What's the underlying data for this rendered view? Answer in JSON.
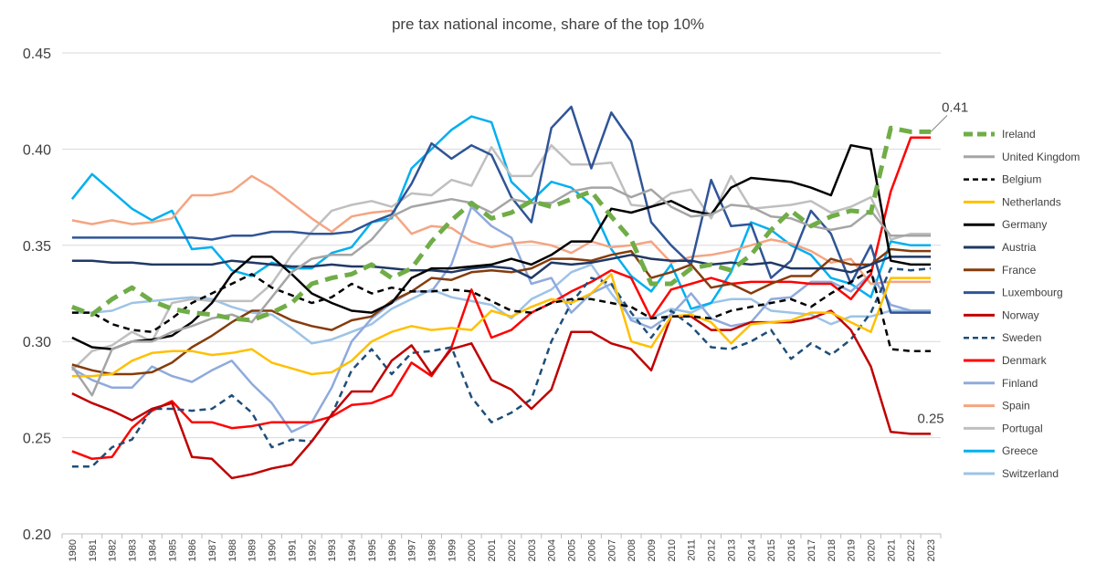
{
  "chart_data": {
    "type": "line",
    "title": "pre tax national income, share of the top 10%",
    "xlabel": "",
    "ylabel": "",
    "ylim": [
      0.2,
      0.45
    ],
    "yticks": [
      "0.20",
      "0.25",
      "0.30",
      "0.35",
      "0.40",
      "0.45"
    ],
    "ytick_values": [
      0.2,
      0.25,
      0.3,
      0.35,
      0.4,
      0.45
    ],
    "grid": true,
    "legend_position": "right",
    "x": [
      "1980",
      "1981",
      "1982",
      "1983",
      "1984",
      "1985",
      "1986",
      "1987",
      "1988",
      "1989",
      "1990",
      "1991",
      "1992",
      "1993",
      "1994",
      "1995",
      "1996",
      "1997",
      "1998",
      "1999",
      "2000",
      "2001",
      "2002",
      "2003",
      "2004",
      "2005",
      "2006",
      "2007",
      "2008",
      "2009",
      "2010",
      "2011",
      "2012",
      "2013",
      "2014",
      "2015",
      "2016",
      "2017",
      "2018",
      "2019",
      "2020",
      "2021",
      "2022",
      "2023"
    ],
    "annotations": [
      {
        "text": "0.41",
        "series": "Ireland",
        "year": "2023"
      },
      {
        "text": "0.25",
        "series": "Norway",
        "year": "2023"
      }
    ],
    "series": [
      {
        "name": "Ireland",
        "color": "#70ad47",
        "style": "dashed-thick",
        "values": [
          0.318,
          0.314,
          0.322,
          0.328,
          0.321,
          0.317,
          0.315,
          0.314,
          0.312,
          0.311,
          0.315,
          0.32,
          0.33,
          0.333,
          0.335,
          0.34,
          0.333,
          0.338,
          0.352,
          0.363,
          0.372,
          0.364,
          0.367,
          0.373,
          0.37,
          0.374,
          0.378,
          0.365,
          0.353,
          0.33,
          0.33,
          0.338,
          0.34,
          0.337,
          0.345,
          0.358,
          0.368,
          0.36,
          0.365,
          0.368,
          0.367,
          0.411,
          0.409,
          0.409
        ]
      },
      {
        "name": "United Kingdom",
        "color": "#a5a5a5",
        "style": "solid",
        "values": [
          0.287,
          0.272,
          0.296,
          0.3,
          0.3,
          0.305,
          0.308,
          0.312,
          0.314,
          0.31,
          0.323,
          0.336,
          0.343,
          0.345,
          0.345,
          0.353,
          0.365,
          0.37,
          0.372,
          0.374,
          0.372,
          0.367,
          0.374,
          0.372,
          0.372,
          0.378,
          0.38,
          0.38,
          0.375,
          0.379,
          0.37,
          0.365,
          0.366,
          0.371,
          0.37,
          0.365,
          0.364,
          0.36,
          0.358,
          0.36,
          0.368,
          0.355,
          0.355,
          0.355
        ]
      },
      {
        "name": "Belgium",
        "color": "#000000",
        "style": "dashed",
        "values": [
          0.315,
          0.315,
          0.309,
          0.306,
          0.305,
          0.312,
          0.32,
          0.325,
          0.33,
          0.335,
          0.328,
          0.324,
          0.32,
          0.323,
          0.33,
          0.325,
          0.328,
          0.326,
          0.326,
          0.327,
          0.326,
          0.321,
          0.316,
          0.315,
          0.32,
          0.322,
          0.322,
          0.32,
          0.318,
          0.312,
          0.313,
          0.313,
          0.312,
          0.316,
          0.318,
          0.32,
          0.322,
          0.318,
          0.325,
          0.331,
          0.337,
          0.296,
          0.295,
          0.295
        ]
      },
      {
        "name": "Netherlands",
        "color": "#ffc000",
        "style": "solid",
        "values": [
          0.282,
          0.282,
          0.283,
          0.29,
          0.294,
          0.295,
          0.295,
          0.293,
          0.294,
          0.296,
          0.289,
          0.286,
          0.283,
          0.284,
          0.29,
          0.3,
          0.305,
          0.308,
          0.306,
          0.307,
          0.306,
          0.316,
          0.313,
          0.318,
          0.322,
          0.32,
          0.325,
          0.335,
          0.3,
          0.297,
          0.313,
          0.314,
          0.31,
          0.299,
          0.309,
          0.31,
          0.311,
          0.315,
          0.315,
          0.31,
          0.305,
          0.333,
          0.333,
          0.333
        ]
      },
      {
        "name": "Germany",
        "color": "#000000",
        "style": "solid",
        "values": [
          0.302,
          0.297,
          0.296,
          0.3,
          0.301,
          0.303,
          0.31,
          0.32,
          0.335,
          0.344,
          0.344,
          0.335,
          0.325,
          0.32,
          0.316,
          0.315,
          0.32,
          0.333,
          0.338,
          0.338,
          0.339,
          0.34,
          0.343,
          0.34,
          0.345,
          0.352,
          0.352,
          0.369,
          0.367,
          0.37,
          0.373,
          0.368,
          0.366,
          0.38,
          0.385,
          0.384,
          0.383,
          0.38,
          0.376,
          0.402,
          0.4,
          0.342,
          0.34,
          0.34
        ]
      },
      {
        "name": "Austria",
        "color": "#203864",
        "style": "solid",
        "values": [
          0.342,
          0.342,
          0.341,
          0.341,
          0.34,
          0.34,
          0.34,
          0.34,
          0.342,
          0.341,
          0.34,
          0.339,
          0.339,
          0.34,
          0.339,
          0.339,
          0.338,
          0.337,
          0.337,
          0.336,
          0.338,
          0.339,
          0.338,
          0.333,
          0.341,
          0.34,
          0.341,
          0.343,
          0.345,
          0.343,
          0.342,
          0.342,
          0.34,
          0.341,
          0.34,
          0.341,
          0.338,
          0.338,
          0.338,
          0.336,
          0.34,
          0.344,
          0.344,
          0.344
        ]
      },
      {
        "name": "France",
        "color": "#843c0c",
        "style": "solid",
        "values": [
          0.288,
          0.285,
          0.283,
          0.283,
          0.284,
          0.289,
          0.297,
          0.303,
          0.31,
          0.316,
          0.316,
          0.311,
          0.308,
          0.306,
          0.311,
          0.313,
          0.321,
          0.326,
          0.333,
          0.332,
          0.336,
          0.337,
          0.336,
          0.338,
          0.343,
          0.343,
          0.342,
          0.345,
          0.347,
          0.333,
          0.336,
          0.34,
          0.328,
          0.33,
          0.325,
          0.33,
          0.334,
          0.334,
          0.343,
          0.34,
          0.34,
          0.348,
          0.347,
          0.347
        ]
      },
      {
        "name": "Luxembourg",
        "color": "#2f5597",
        "style": "solid",
        "values": [
          0.354,
          0.354,
          0.354,
          0.354,
          0.354,
          0.354,
          0.354,
          0.353,
          0.355,
          0.355,
          0.357,
          0.357,
          0.356,
          0.356,
          0.357,
          0.362,
          0.366,
          0.382,
          0.403,
          0.395,
          0.402,
          0.397,
          0.375,
          0.362,
          0.411,
          0.422,
          0.39,
          0.419,
          0.404,
          0.362,
          0.35,
          0.34,
          0.384,
          0.36,
          0.361,
          0.333,
          0.342,
          0.368,
          0.356,
          0.33,
          0.35,
          0.315,
          0.315,
          0.315
        ]
      },
      {
        "name": "Norway",
        "color": "#c00000",
        "style": "solid",
        "values": [
          0.273,
          0.268,
          0.264,
          0.259,
          0.265,
          0.268,
          0.24,
          0.239,
          0.229,
          0.231,
          0.234,
          0.236,
          0.248,
          0.262,
          0.274,
          0.274,
          0.29,
          0.298,
          0.283,
          0.296,
          0.299,
          0.28,
          0.275,
          0.265,
          0.275,
          0.305,
          0.305,
          0.299,
          0.296,
          0.285,
          0.313,
          0.313,
          0.306,
          0.306,
          0.31,
          0.31,
          0.31,
          0.312,
          0.316,
          0.306,
          0.287,
          0.253,
          0.252,
          0.252
        ]
      },
      {
        "name": "Sweden",
        "color": "#1f4e79",
        "style": "dashed",
        "values": [
          0.235,
          0.235,
          0.245,
          0.249,
          0.265,
          0.265,
          0.264,
          0.265,
          0.272,
          0.263,
          0.245,
          0.249,
          0.248,
          0.262,
          0.285,
          0.296,
          0.283,
          0.294,
          0.295,
          0.297,
          0.271,
          0.258,
          0.263,
          0.27,
          0.3,
          0.32,
          0.333,
          0.33,
          0.315,
          0.302,
          0.316,
          0.308,
          0.297,
          0.296,
          0.3,
          0.306,
          0.291,
          0.299,
          0.293,
          0.301,
          0.315,
          0.338,
          0.337,
          0.338
        ]
      },
      {
        "name": "Denmark",
        "color": "#ff0000",
        "style": "solid",
        "values": [
          0.243,
          0.239,
          0.24,
          0.255,
          0.264,
          0.269,
          0.258,
          0.258,
          0.255,
          0.256,
          0.258,
          0.258,
          0.258,
          0.261,
          0.267,
          0.268,
          0.272,
          0.289,
          0.282,
          0.297,
          0.327,
          0.302,
          0.306,
          0.315,
          0.32,
          0.326,
          0.331,
          0.337,
          0.333,
          0.312,
          0.327,
          0.33,
          0.333,
          0.33,
          0.331,
          0.331,
          0.331,
          0.33,
          0.33,
          0.322,
          0.335,
          0.378,
          0.406,
          0.406
        ]
      },
      {
        "name": "Finland",
        "color": "#8faadc",
        "style": "solid",
        "values": [
          0.286,
          0.28,
          0.276,
          0.276,
          0.287,
          0.282,
          0.279,
          0.285,
          0.29,
          0.278,
          0.268,
          0.253,
          0.258,
          0.276,
          0.3,
          0.312,
          0.32,
          0.326,
          0.326,
          0.34,
          0.37,
          0.36,
          0.354,
          0.33,
          0.333,
          0.315,
          0.325,
          0.33,
          0.311,
          0.307,
          0.314,
          0.325,
          0.312,
          0.308,
          0.31,
          0.322,
          0.323,
          0.331,
          0.331,
          0.326,
          0.335,
          0.319,
          0.316,
          0.316
        ]
      },
      {
        "name": "Spain",
        "color": "#f4a582",
        "style": "solid",
        "values": [
          0.363,
          0.361,
          0.363,
          0.361,
          0.362,
          0.364,
          0.376,
          0.376,
          0.378,
          0.386,
          0.38,
          0.372,
          0.364,
          0.357,
          0.365,
          0.367,
          0.368,
          0.356,
          0.36,
          0.359,
          0.352,
          0.349,
          0.351,
          0.352,
          0.35,
          0.346,
          0.352,
          0.349,
          0.35,
          0.352,
          0.341,
          0.344,
          0.345,
          0.347,
          0.35,
          0.353,
          0.351,
          0.347,
          0.341,
          0.343,
          0.33,
          0.331,
          0.331,
          0.331
        ]
      },
      {
        "name": "Portugal",
        "color": "#bfbfbf",
        "style": "solid",
        "values": [
          0.285,
          0.295,
          0.298,
          0.305,
          0.3,
          0.32,
          0.322,
          0.321,
          0.321,
          0.321,
          0.33,
          0.345,
          0.357,
          0.368,
          0.371,
          0.373,
          0.37,
          0.377,
          0.376,
          0.384,
          0.381,
          0.401,
          0.386,
          0.386,
          0.402,
          0.392,
          0.392,
          0.393,
          0.371,
          0.37,
          0.377,
          0.379,
          0.364,
          0.386,
          0.369,
          0.37,
          0.371,
          0.373,
          0.367,
          0.37,
          0.375,
          0.353,
          0.356,
          0.356
        ]
      },
      {
        "name": "Greece",
        "color": "#00b0f0",
        "style": "solid",
        "values": [
          0.374,
          0.387,
          0.378,
          0.369,
          0.363,
          0.368,
          0.348,
          0.349,
          0.337,
          0.334,
          0.341,
          0.338,
          0.338,
          0.346,
          0.349,
          0.362,
          0.364,
          0.39,
          0.4,
          0.41,
          0.417,
          0.414,
          0.383,
          0.373,
          0.383,
          0.38,
          0.371,
          0.348,
          0.334,
          0.326,
          0.34,
          0.317,
          0.32,
          0.336,
          0.362,
          0.358,
          0.35,
          0.345,
          0.333,
          0.33,
          0.323,
          0.352,
          0.35,
          0.35
        ]
      },
      {
        "name": "Switzerland",
        "color": "#9dc3e6",
        "style": "solid",
        "values": [
          0.315,
          0.315,
          0.316,
          0.32,
          0.321,
          0.322,
          0.323,
          0.322,
          0.318,
          0.315,
          0.314,
          0.307,
          0.299,
          0.301,
          0.305,
          0.309,
          0.317,
          0.322,
          0.327,
          0.323,
          0.321,
          0.319,
          0.312,
          0.322,
          0.327,
          0.336,
          0.34,
          0.325,
          0.312,
          0.312,
          0.317,
          0.315,
          0.32,
          0.322,
          0.322,
          0.316,
          0.315,
          0.314,
          0.309,
          0.313,
          0.313,
          0.316,
          0.316,
          0.316
        ]
      }
    ]
  }
}
